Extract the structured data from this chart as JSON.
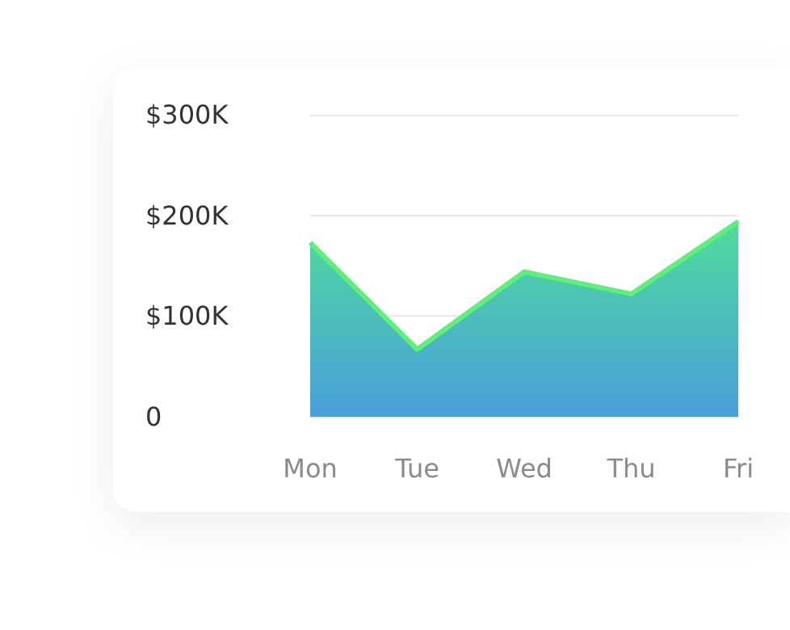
{
  "chart_data": {
    "type": "area",
    "categories": [
      "Mon",
      "Tue",
      "Wed",
      "Thu",
      "Fri"
    ],
    "series": [
      {
        "color": "#5ef07c",
        "values": [
          173000,
          67000,
          144000,
          122000,
          194000
        ]
      }
    ],
    "ylim": [
      0,
      300000
    ],
    "yticks": [
      0,
      {
        "value": 100000,
        "label": "$100K"
      },
      {
        "value": 200000,
        "label": "$200K"
      },
      {
        "value": 300000,
        "label": "$300K"
      }
    ],
    "grid": "y",
    "marker": "none",
    "line_style": "solid"
  }
}
